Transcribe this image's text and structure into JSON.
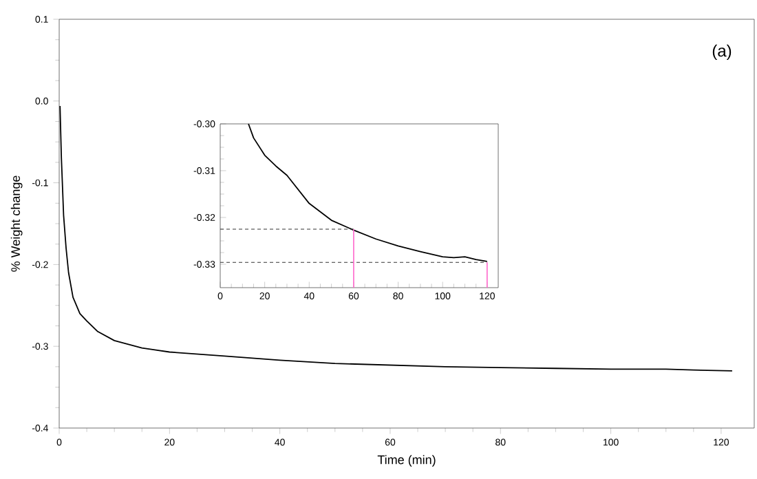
{
  "chart_data": [
    {
      "type": "line",
      "xlabel": "Time (min)",
      "ylabel": "% Weight change",
      "annotations": [
        "(a)"
      ],
      "xlim": [
        0,
        126
      ],
      "ylim": [
        -0.4,
        0.1
      ],
      "xticks": [
        0,
        20,
        40,
        60,
        80,
        100,
        120
      ],
      "yticks": [
        {
          "value": 0.1,
          "label": "0.1"
        },
        {
          "value": 0,
          "label": "0.0"
        },
        {
          "value": -0.1,
          "label": "-0.1"
        },
        {
          "value": -0.2,
          "label": "-0.2"
        },
        {
          "value": -0.3,
          "label": "-0.3"
        },
        {
          "value": -0.4,
          "label": "-0.4"
        }
      ],
      "grid": false,
      "x": [
        0.15,
        0.4,
        0.8,
        1.25,
        1.7,
        2.5,
        3.75,
        5,
        7,
        10,
        15,
        20,
        30,
        40,
        50,
        60,
        70,
        80,
        90,
        100,
        110,
        115,
        122
      ],
      "series": [
        {
          "color": "#000000",
          "values": [
            -0.006,
            -0.07,
            -0.14,
            -0.18,
            -0.21,
            -0.24,
            -0.26,
            -0.269,
            -0.282,
            -0.293,
            -0.302,
            -0.307,
            -0.312,
            -0.317,
            -0.321,
            -0.323,
            -0.325,
            -0.326,
            -0.327,
            -0.328,
            -0.328,
            -0.329,
            -0.33
          ]
        }
      ]
    },
    {
      "type": "line",
      "xlim": [
        0,
        125
      ],
      "ylim": [
        -0.335,
        -0.3
      ],
      "xticks": [
        0,
        20,
        40,
        60,
        80,
        100,
        120
      ],
      "yticks": [
        {
          "value": -0.3,
          "label": "-0.30"
        },
        {
          "value": -0.31,
          "label": "-0.31"
        },
        {
          "value": -0.32,
          "label": "-0.32"
        },
        {
          "value": -0.33,
          "label": "-0.33"
        }
      ],
      "grid": false,
      "x": [
        12.7,
        15,
        20,
        25,
        30,
        40,
        50,
        60,
        70,
        80,
        90,
        100,
        105,
        110,
        115,
        120
      ],
      "series": [
        {
          "color": "#000000",
          "values": [
            -0.3,
            -0.303,
            -0.3067,
            -0.309,
            -0.311,
            -0.317,
            -0.3206,
            -0.3227,
            -0.3246,
            -0.3261,
            -0.3273,
            -0.3284,
            -0.3286,
            -0.3284,
            -0.329,
            -0.3294
          ]
        }
      ],
      "ref_lines": [
        {
          "axis": "y",
          "value": -0.3225,
          "color": "#333333",
          "line_style": "dashed"
        },
        {
          "axis": "y",
          "value": -0.3296,
          "color": "#333333",
          "line_style": "dashed"
        },
        {
          "axis": "x",
          "value": 60,
          "color": "#ff66cc",
          "line_style": "solid"
        },
        {
          "axis": "x",
          "value": 120,
          "color": "#ff66cc",
          "line_style": "solid"
        }
      ]
    }
  ]
}
